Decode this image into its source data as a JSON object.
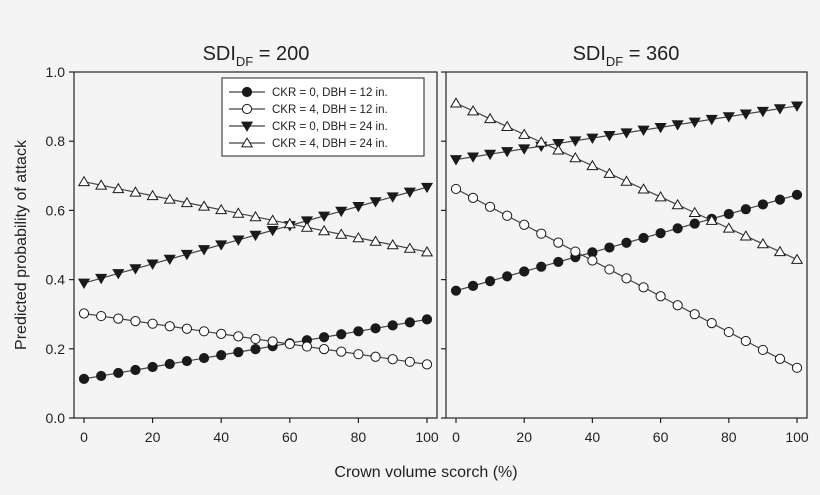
{
  "colors": {
    "background": "#f4f4f4",
    "line": "#444444",
    "marker_fill": "#1a1a1a",
    "hollow_fill": "#ffffff"
  },
  "chart_data": {
    "type": "line",
    "xlabel": "Crown volume scorch (%)",
    "ylabel": "Predicted probability of attack",
    "xlim": [
      0,
      100
    ],
    "ylim": [
      0,
      1
    ],
    "x_ticks": [
      0,
      20,
      40,
      60,
      80,
      100
    ],
    "y_ticks": [
      "0.0",
      "0.2",
      "0.4",
      "0.6",
      "0.8",
      "1.0"
    ],
    "x": [
      0,
      5,
      10,
      15,
      20,
      25,
      30,
      35,
      40,
      45,
      50,
      55,
      60,
      65,
      70,
      75,
      80,
      85,
      90,
      95,
      100
    ],
    "legend": {
      "placement": "top-right of left panel",
      "entries": [
        {
          "label": "CKR = 0, DBH = 12 in.",
          "marker": "circle",
          "fill": "filled"
        },
        {
          "label": "CKR = 4, DBH = 12 in.",
          "marker": "circle",
          "fill": "open"
        },
        {
          "label": "CKR = 0, DBH = 24 in.",
          "marker": "triangle-down",
          "fill": "filled"
        },
        {
          "label": "CKR = 4, DBH = 24 in.",
          "marker": "triangle-up",
          "fill": "open"
        }
      ]
    },
    "panels": [
      {
        "title_main": "SDI",
        "title_sub": "DF",
        "title_rest": " = 200",
        "series": [
          {
            "name": "CKR = 0, DBH = 12 in.",
            "start": 0.113,
            "end": 0.285
          },
          {
            "name": "CKR = 4, DBH = 12 in.",
            "start": 0.302,
            "end": 0.155
          },
          {
            "name": "CKR = 0, DBH = 24 in.",
            "start": 0.39,
            "end": 0.667
          },
          {
            "name": "CKR = 4, DBH = 24 in.",
            "start": 0.683,
            "end": 0.48
          }
        ]
      },
      {
        "title_main": "SDI",
        "title_sub": "DF",
        "title_rest": " = 360",
        "series": [
          {
            "name": "CKR = 0, DBH = 12 in.",
            "start": 0.368,
            "end": 0.645
          },
          {
            "name": "CKR = 4, DBH = 12 in.",
            "start": 0.662,
            "end": 0.145
          },
          {
            "name": "CKR = 0, DBH = 24 in.",
            "start": 0.747,
            "end": 0.902
          },
          {
            "name": "CKR = 4, DBH = 24 in.",
            "start": 0.91,
            "end": 0.458
          }
        ]
      }
    ]
  }
}
